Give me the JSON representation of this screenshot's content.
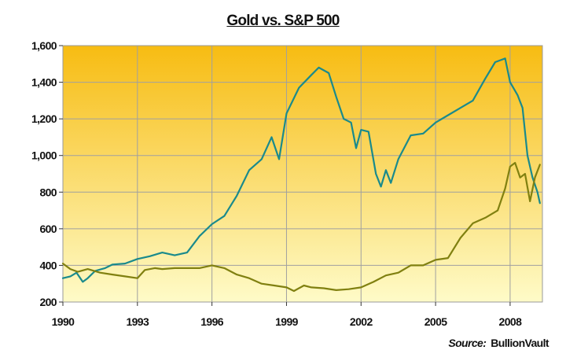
{
  "chart_data": {
    "type": "line",
    "title": "Gold vs. S&P 500",
    "xlabel": "",
    "ylabel": "",
    "xlim": [
      1990,
      2009.3
    ],
    "ylim": [
      200,
      1600
    ],
    "x_ticks": [
      1990,
      1993,
      1996,
      1999,
      2002,
      2005,
      2008
    ],
    "x_tick_labels": [
      "1990",
      "1993",
      "1996",
      "1999",
      "2002",
      "2005",
      "2008"
    ],
    "y_ticks": [
      200,
      400,
      600,
      800,
      1000,
      1200,
      1400,
      1600
    ],
    "y_tick_labels": [
      "200",
      "400",
      "600",
      "800",
      "1,000",
      "1,200",
      "1,400",
      "1,600"
    ],
    "grid": true,
    "legend": "none",
    "background": {
      "top": "#f7bc12",
      "bottom": "#fefbc8"
    },
    "series": [
      {
        "color": "#1a8a8c",
        "points": [
          [
            1990.0,
            330
          ],
          [
            1990.3,
            340
          ],
          [
            1990.55,
            360
          ],
          [
            1990.8,
            310
          ],
          [
            1991.0,
            330
          ],
          [
            1991.3,
            370
          ],
          [
            1991.7,
            385
          ],
          [
            1992.0,
            405
          ],
          [
            1992.5,
            410
          ],
          [
            1993.0,
            435
          ],
          [
            1993.5,
            450
          ],
          [
            1994.0,
            470
          ],
          [
            1994.5,
            455
          ],
          [
            1995.0,
            470
          ],
          [
            1995.5,
            560
          ],
          [
            1996.0,
            625
          ],
          [
            1996.5,
            670
          ],
          [
            1997.0,
            780
          ],
          [
            1997.5,
            920
          ],
          [
            1998.0,
            980
          ],
          [
            1998.4,
            1100
          ],
          [
            1998.7,
            980
          ],
          [
            1999.0,
            1230
          ],
          [
            1999.5,
            1370
          ],
          [
            2000.0,
            1440
          ],
          [
            2000.3,
            1480
          ],
          [
            2000.7,
            1450
          ],
          [
            2001.0,
            1320
          ],
          [
            2001.3,
            1200
          ],
          [
            2001.6,
            1180
          ],
          [
            2001.8,
            1040
          ],
          [
            2002.0,
            1140
          ],
          [
            2002.3,
            1130
          ],
          [
            2002.6,
            900
          ],
          [
            2002.8,
            830
          ],
          [
            2003.0,
            920
          ],
          [
            2003.2,
            850
          ],
          [
            2003.5,
            980
          ],
          [
            2004.0,
            1110
          ],
          [
            2004.5,
            1120
          ],
          [
            2005.0,
            1180
          ],
          [
            2005.5,
            1220
          ],
          [
            2006.0,
            1260
          ],
          [
            2006.5,
            1300
          ],
          [
            2007.0,
            1420
          ],
          [
            2007.4,
            1510
          ],
          [
            2007.8,
            1530
          ],
          [
            2008.0,
            1400
          ],
          [
            2008.3,
            1330
          ],
          [
            2008.5,
            1260
          ],
          [
            2008.7,
            1000
          ],
          [
            2008.9,
            880
          ],
          [
            2009.1,
            800
          ],
          [
            2009.2,
            740
          ]
        ]
      },
      {
        "color": "#808010",
        "points": [
          [
            1990.0,
            410
          ],
          [
            1990.3,
            380
          ],
          [
            1990.6,
            365
          ],
          [
            1991.0,
            380
          ],
          [
            1991.5,
            360
          ],
          [
            1992.0,
            350
          ],
          [
            1992.5,
            340
          ],
          [
            1993.0,
            330
          ],
          [
            1993.3,
            375
          ],
          [
            1993.7,
            385
          ],
          [
            1994.0,
            380
          ],
          [
            1994.5,
            385
          ],
          [
            1995.0,
            385
          ],
          [
            1995.5,
            385
          ],
          [
            1996.0,
            400
          ],
          [
            1996.5,
            385
          ],
          [
            1997.0,
            350
          ],
          [
            1997.5,
            330
          ],
          [
            1998.0,
            300
          ],
          [
            1998.5,
            290
          ],
          [
            1999.0,
            280
          ],
          [
            1999.3,
            260
          ],
          [
            1999.7,
            290
          ],
          [
            2000.0,
            280
          ],
          [
            2000.5,
            275
          ],
          [
            2001.0,
            265
          ],
          [
            2001.5,
            270
          ],
          [
            2002.0,
            280
          ],
          [
            2002.5,
            310
          ],
          [
            2003.0,
            345
          ],
          [
            2003.5,
            360
          ],
          [
            2004.0,
            400
          ],
          [
            2004.5,
            400
          ],
          [
            2005.0,
            430
          ],
          [
            2005.5,
            440
          ],
          [
            2006.0,
            550
          ],
          [
            2006.5,
            630
          ],
          [
            2007.0,
            660
          ],
          [
            2007.5,
            700
          ],
          [
            2007.8,
            820
          ],
          [
            2008.0,
            940
          ],
          [
            2008.2,
            960
          ],
          [
            2008.4,
            880
          ],
          [
            2008.6,
            900
          ],
          [
            2008.8,
            750
          ],
          [
            2009.0,
            880
          ],
          [
            2009.2,
            950
          ]
        ]
      }
    ],
    "source_label": "Source:",
    "source_name": "BullionVault"
  }
}
